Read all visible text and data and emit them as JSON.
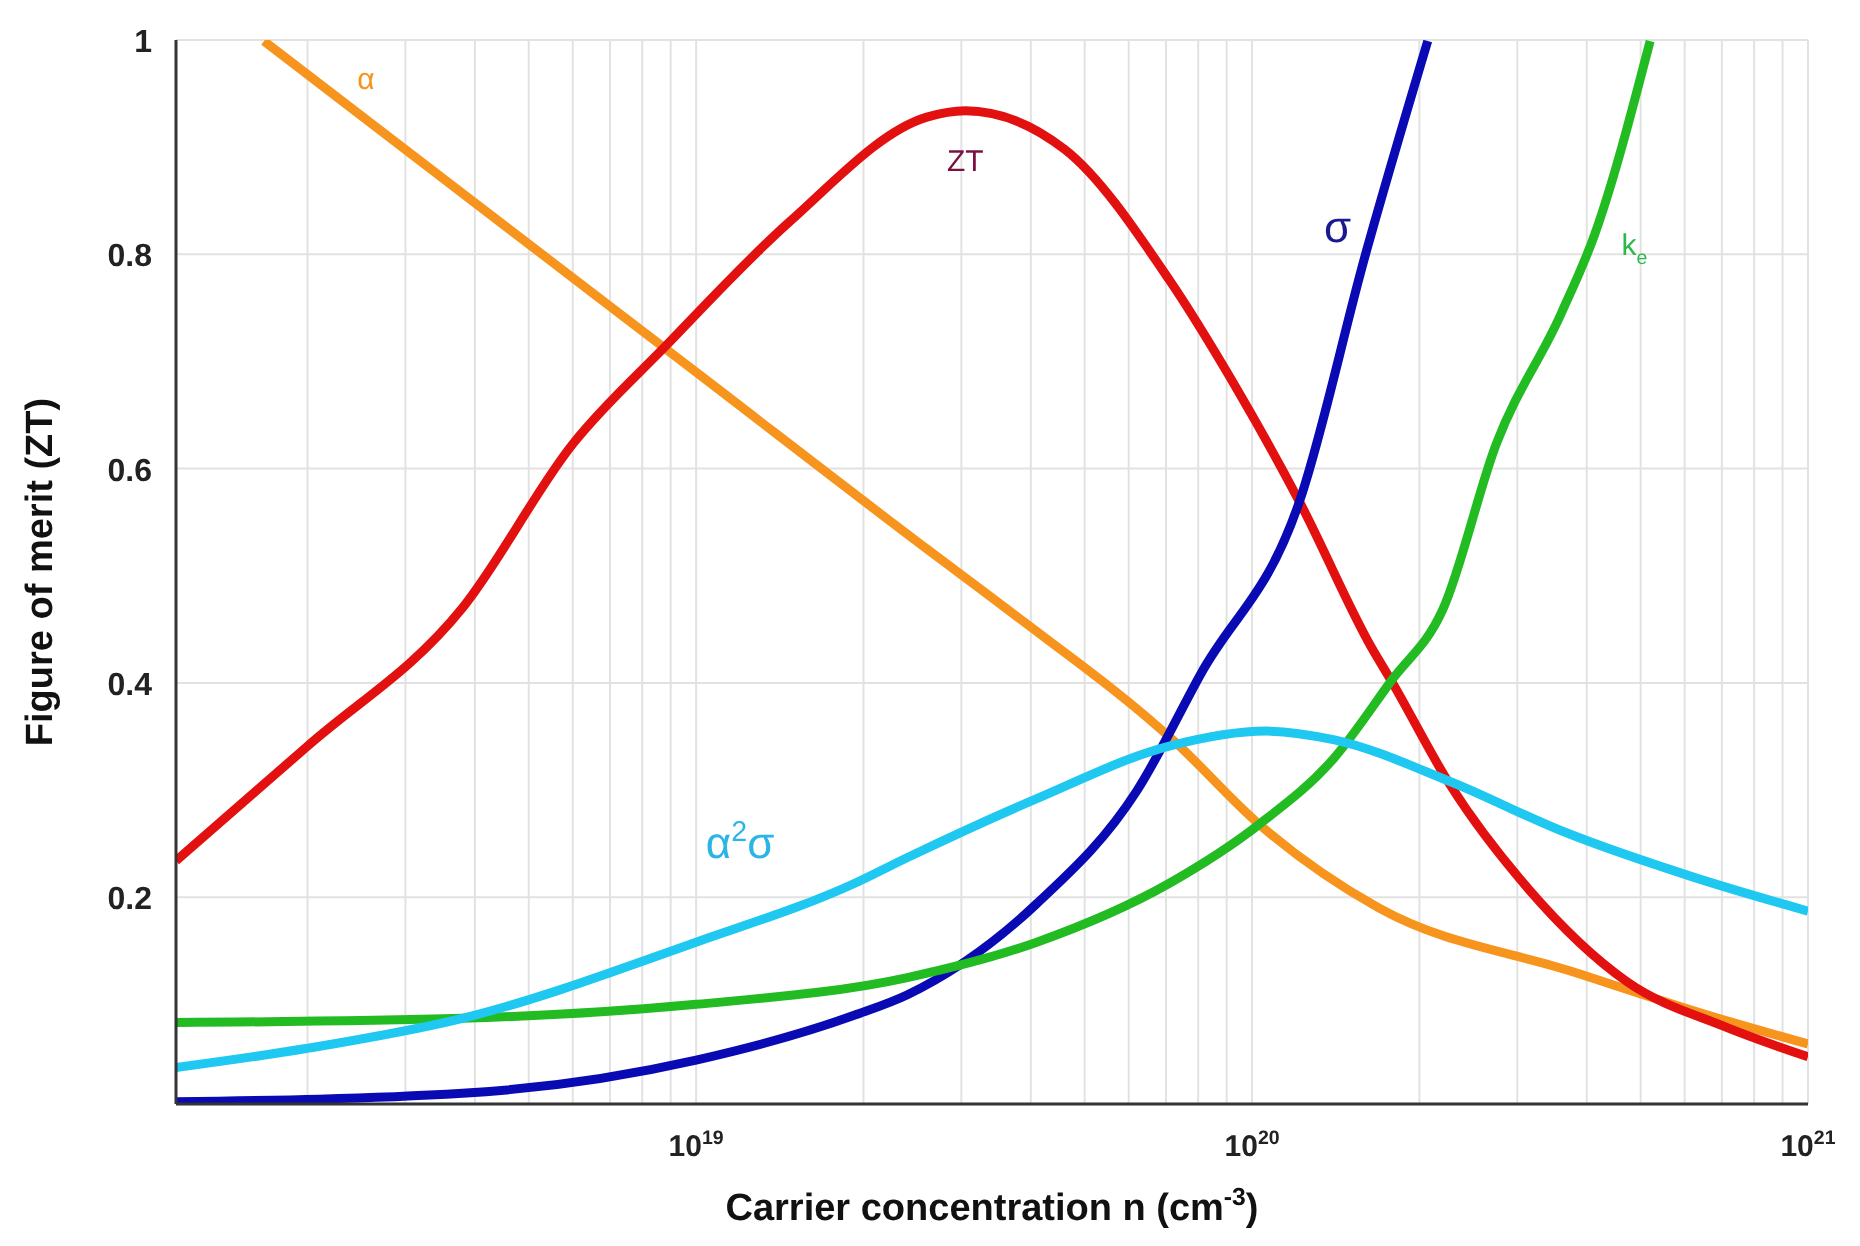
{
  "chart_data": {
    "type": "line",
    "xlabel": "Carrier concentration n (cm$^{-3}$)",
    "ylabel": "Figure of merit (ZT)",
    "log": "x",
    "xlim": [
      1.16e+18,
      1e+21
    ],
    "xticks": [
      {
        "value": 2e+18,
        "label": null
      },
      {
        "value": 3e+18,
        "label": null
      },
      {
        "value": 4e+18,
        "label": null
      },
      {
        "value": 5e+18,
        "label": null
      },
      {
        "value": 6e+18,
        "label": null
      },
      {
        "value": 7e+18,
        "label": null
      },
      {
        "value": 8e+18,
        "label": null
      },
      {
        "value": 9e+18,
        "label": null
      },
      {
        "value": 1e+19,
        "label": "10$^{19}$"
      },
      {
        "value": 2e+19,
        "label": null
      },
      {
        "value": 3e+19,
        "label": null
      },
      {
        "value": 4e+19,
        "label": null
      },
      {
        "value": 5e+19,
        "label": null
      },
      {
        "value": 6e+19,
        "label": null
      },
      {
        "value": 7e+19,
        "label": null
      },
      {
        "value": 8e+19,
        "label": null
      },
      {
        "value": 9e+19,
        "label": null
      },
      {
        "value": 1e+20,
        "label": "10$^{20}$"
      },
      {
        "value": 2e+20,
        "label": null
      },
      {
        "value": 3e+20,
        "label": null
      },
      {
        "value": 4e+20,
        "label": null
      },
      {
        "value": 5e+20,
        "label": null
      },
      {
        "value": 6e+20,
        "label": null
      },
      {
        "value": 7e+20,
        "label": null
      },
      {
        "value": 8e+20,
        "label": null
      },
      {
        "value": 9e+20,
        "label": null
      },
      {
        "value": 1e+21,
        "label": "10$^{21}$"
      }
    ],
    "ylim": [
      0.007,
      1
    ],
    "yticks": [
      0.2,
      0.4,
      0.6,
      0.8,
      1
    ],
    "grid": true,
    "legend": false,
    "marker": "none",
    "line_style": "solid",
    "series": [
      {
        "name": "α",
        "color": "#f7941d",
        "x": [
          1.67e+18,
          4e+18,
          1e+19,
          2.6e+19,
          3.6e+19,
          7.3e+19,
          1.03e+20,
          1.69e+20,
          3.8e+20,
          6.8e+20,
          1e+21
        ],
        "values": [
          0.999,
          0.848,
          0.69,
          0.525,
          0.47,
          0.344,
          0.268,
          0.19,
          0.13,
          0.088,
          0.063
        ]
      },
      {
        "name": "ZT",
        "color": "#e31010",
        "x": [
          1.16e+18,
          2e+18,
          3.8e+18,
          6e+18,
          8.8e+18,
          1.47e+19,
          2.6e+19,
          3.05e+19,
          4.6e+19,
          7.1e+19,
          9.3e+19,
          1.22e+20,
          1.64e+20,
          1.78e+20,
          2.27e+20,
          3.15e+20,
          4.73e+20,
          7.1e+20,
          1e+21
        ],
        "values": [
          0.234,
          0.341,
          0.47,
          0.623,
          0.714,
          0.83,
          0.928,
          0.934,
          0.898,
          0.776,
          0.678,
          0.568,
          0.433,
          0.402,
          0.305,
          0.207,
          0.121,
          0.079,
          0.051
        ]
      },
      {
        "name": "σ",
        "color": "#0a0ab4",
        "x": [
          1.16e+18,
          3.8e+18,
          1e+19,
          1.93e+19,
          2.4e+19,
          4.1e+19,
          6.2e+19,
          8.1e+19,
          1.22e+20,
          1.6e+20,
          2.07e+20
        ],
        "values": [
          0.009,
          0.017,
          0.048,
          0.09,
          0.109,
          0.194,
          0.299,
          0.409,
          0.571,
          0.8,
          0.999
        ]
      },
      {
        "name": "k$_{e}$",
        "color": "#22bb22",
        "x": [
          1.16e+18,
          3.8e+18,
          1e+19,
          2.4e+19,
          4.1e+19,
          7.1e+19,
          1.03e+20,
          1.4e+20,
          1.78e+20,
          2.21e+20,
          2.75e+20,
          3.6e+20,
          4.13e+20,
          5.2e+20
        ],
        "values": [
          0.083,
          0.087,
          0.1,
          0.125,
          0.158,
          0.213,
          0.268,
          0.329,
          0.402,
          0.47,
          0.623,
          0.745,
          0.818,
          0.999
        ]
      },
      {
        "name": "α$^{2}$σ",
        "color": "#1ec8f0",
        "x": [
          1.16e+18,
          2e+18,
          3.8e+18,
          1e+19,
          1.93e+19,
          2.4e+19,
          4.1e+19,
          7.1e+19,
          1.06e+20,
          1.4e+20,
          2.27e+20,
          3.6e+20,
          6.2e+20,
          1e+21
        ],
        "values": [
          0.041,
          0.059,
          0.087,
          0.158,
          0.213,
          0.237,
          0.292,
          0.341,
          0.355,
          0.347,
          0.308,
          0.262,
          0.219,
          0.187
        ]
      }
    ]
  }
}
